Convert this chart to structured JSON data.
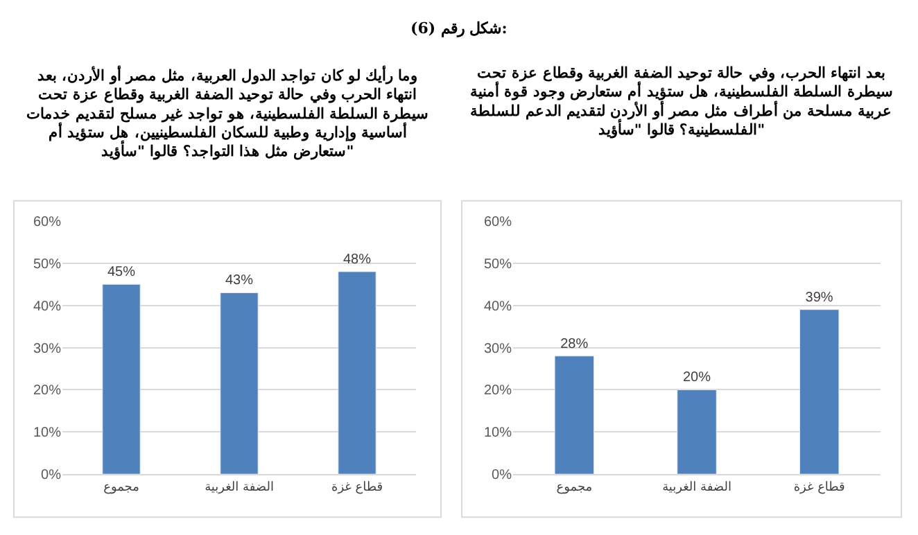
{
  "chart_data": [
    {
      "type": "bar",
      "annotations": [
        "شكل رقم (6):"
      ],
      "title": "بعد انتهاء الحرب، وفي حالة توحيد الضفة الغربية وقطاع عزة تحت\nسيطرة السلطة الفلسطينية، هل ستؤيد أم ستعارض وجود قوة أمنية\nعربية مسلحة من أطراف مثل مصر أو الأردن لتقديم الدعم للسلطة\nالفلسطينية؟ قالوا \"سأؤيد\"",
      "categories": [
        "مجموع",
        "الضفة الغربية",
        "قطاع غزة"
      ],
      "values": [
        28,
        20,
        39
      ],
      "value_labels": [
        "28%",
        "20%",
        "39%"
      ],
      "color": "#4f81bd",
      "ylim": [
        0,
        60
      ],
      "yticks": [
        {
          "value": 0,
          "label": "0%"
        },
        {
          "value": 10,
          "label": "10%"
        },
        {
          "value": 20,
          "label": "20%"
        },
        {
          "value": 30,
          "label": "30%"
        },
        {
          "value": 40,
          "label": "40%"
        },
        {
          "value": 50,
          "label": "50%"
        },
        {
          "value": 60,
          "label": "60%"
        }
      ],
      "grid": "y",
      "legend": false
    },
    {
      "type": "bar",
      "title": "وما رأيك لو كان تواجد الدول العربية، مثل مصر أو الأردن، بعد\nانتهاء الحرب وفي حالة توحيد الضفة الغربية وقطاع عزة تحت\nسيطرة السلطة الفلسطينية، هو تواجد غير مسلح لتقديم خدمات\nأساسية وإدارية وطبية للسكان الفلسطينيين، هل ستؤيد أم\nستعارض مثل هذا التواجد؟ قالوا \"سأؤيد\"",
      "categories": [
        "مجموع",
        "الضفة الغربية",
        "قطاع غزة"
      ],
      "values": [
        45,
        43,
        48
      ],
      "value_labels": [
        "45%",
        "43%",
        "48%"
      ],
      "color": "#4f81bd",
      "ylim": [
        0,
        60
      ],
      "yticks": [
        {
          "value": 0,
          "label": "0%"
        },
        {
          "value": 10,
          "label": "10%"
        },
        {
          "value": 20,
          "label": "20%"
        },
        {
          "value": 30,
          "label": "30%"
        },
        {
          "value": 40,
          "label": "40%"
        },
        {
          "value": 50,
          "label": "50%"
        },
        {
          "value": 60,
          "label": "60%"
        }
      ],
      "grid": "y",
      "legend": false
    }
  ]
}
